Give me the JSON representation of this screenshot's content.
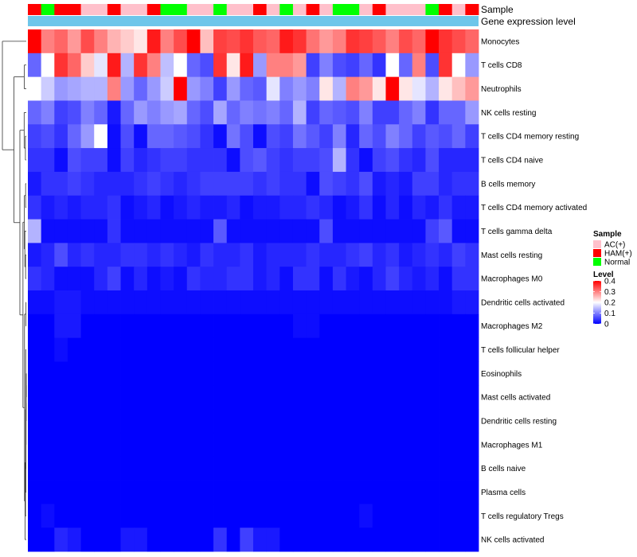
{
  "chart_data": {
    "type": "heatmap",
    "title": "",
    "annotations": [
      {
        "name": "Sample",
        "type": "categorical"
      },
      {
        "name": "Gene expression level",
        "type": "constant",
        "color": "#6ec6ea"
      }
    ],
    "sample_groups": [
      "HAM(+)",
      "Normal",
      "HAM(+)",
      "HAM(+)",
      "AC(+)",
      "AC(+)",
      "HAM(+)",
      "AC(+)",
      "AC(+)",
      "HAM(+)",
      "Normal",
      "Normal",
      "AC(+)",
      "AC(+)",
      "Normal",
      "AC(+)",
      "AC(+)",
      "HAM(+)",
      "AC(+)",
      "Normal",
      "AC(+)",
      "HAM(+)",
      "AC(+)",
      "Normal",
      "Normal",
      "AC(+)",
      "HAM(+)",
      "AC(+)",
      "AC(+)",
      "AC(+)",
      "Normal",
      "HAM(+)",
      "AC(+)",
      "HAM(+)"
    ],
    "sample_colors": {
      "AC(+)": "#ffc0cb",
      "HAM(+)": "#ff0000",
      "Normal": "#00ff00"
    },
    "rows": [
      "Monocytes",
      "T cells CD8",
      "Neutrophils",
      "NK cells resting",
      "T cells CD4 memory resting",
      "T cells CD4 naive",
      "B cells memory",
      "T cells CD4 memory activated",
      "T cells gamma delta",
      "Mast cells resting",
      "Macrophages M0",
      "Dendritic cells activated",
      "Macrophages M2",
      "T cells follicular helper",
      "Eosinophils",
      "Mast cells activated",
      "Dendritic cells resting",
      "Macrophages M1",
      "B cells naive",
      "Plasma cells",
      "T cells regulatory  Tregs",
      "NK cells activated"
    ],
    "row_base": [
      0.33,
      0.2,
      0.15,
      0.11,
      0.09,
      0.07,
      0.05,
      0.035,
      0.02,
      0.045,
      0.03,
      0.015,
      0.01,
      0.002,
      0.0,
      0.0,
      0.0,
      0.0,
      0.0,
      0.0,
      0.003,
      0.012
    ],
    "values": [
      [
        0.4,
        0.3,
        0.32,
        0.28,
        0.34,
        0.3,
        0.26,
        0.24,
        0.22,
        0.38,
        0.3,
        0.34,
        0.4,
        0.25,
        0.35,
        0.34,
        0.36,
        0.33,
        0.32,
        0.38,
        0.36,
        0.31,
        0.28,
        0.3,
        0.36,
        0.35,
        0.33,
        0.3,
        0.34,
        0.32,
        0.4,
        0.36,
        0.34,
        0.32
      ],
      [
        0.08,
        0.2,
        0.36,
        0.32,
        0.24,
        0.18,
        0.38,
        0.14,
        0.36,
        0.3,
        0.15,
        0.2,
        0.08,
        0.06,
        0.36,
        0.22,
        0.38,
        0.12,
        0.3,
        0.3,
        0.28,
        0.05,
        0.1,
        0.06,
        0.05,
        0.08,
        0.04,
        0.2,
        0.08,
        0.3,
        0.06,
        0.36,
        0.2,
        0.12
      ],
      [
        0.2,
        0.16,
        0.12,
        0.13,
        0.14,
        0.14,
        0.3,
        0.12,
        0.08,
        0.12,
        0.16,
        0.4,
        0.12,
        0.1,
        0.05,
        0.12,
        0.08,
        0.07,
        0.18,
        0.1,
        0.12,
        0.1,
        0.22,
        0.14,
        0.3,
        0.28,
        0.22,
        0.4,
        0.22,
        0.18,
        0.14,
        0.22,
        0.25,
        0.28
      ],
      [
        0.08,
        0.1,
        0.05,
        0.06,
        0.1,
        0.08,
        0.02,
        0.08,
        0.12,
        0.1,
        0.12,
        0.13,
        0.08,
        0.06,
        0.13,
        0.08,
        0.1,
        0.09,
        0.1,
        0.08,
        0.14,
        0.05,
        0.08,
        0.07,
        0.06,
        0.1,
        0.05,
        0.05,
        0.08,
        0.1,
        0.04,
        0.08,
        0.08,
        0.12
      ],
      [
        0.05,
        0.06,
        0.04,
        0.08,
        0.12,
        0.2,
        0.01,
        0.06,
        0.01,
        0.08,
        0.08,
        0.07,
        0.06,
        0.04,
        0.01,
        0.09,
        0.06,
        0.01,
        0.06,
        0.05,
        0.09,
        0.07,
        0.05,
        0.1,
        0.03,
        0.08,
        0.06,
        0.1,
        0.08,
        0.05,
        0.07,
        0.06,
        0.08,
        0.05
      ],
      [
        0.04,
        0.04,
        0.01,
        0.06,
        0.05,
        0.05,
        0.01,
        0.05,
        0.03,
        0.04,
        0.05,
        0.05,
        0.04,
        0.04,
        0.04,
        0.01,
        0.06,
        0.07,
        0.05,
        0.04,
        0.05,
        0.05,
        0.06,
        0.14,
        0.04,
        0.01,
        0.05,
        0.06,
        0.04,
        0.03,
        0.06,
        0.03,
        0.03,
        0.03
      ],
      [
        0.02,
        0.04,
        0.04,
        0.05,
        0.04,
        0.03,
        0.03,
        0.03,
        0.04,
        0.05,
        0.04,
        0.03,
        0.04,
        0.05,
        0.05,
        0.05,
        0.05,
        0.04,
        0.05,
        0.04,
        0.04,
        0.01,
        0.06,
        0.05,
        0.04,
        0.06,
        0.02,
        0.03,
        0.02,
        0.05,
        0.05,
        0.03,
        0.04,
        0.04
      ],
      [
        0.04,
        0.02,
        0.03,
        0.02,
        0.03,
        0.03,
        0.04,
        0.01,
        0.02,
        0.03,
        0.01,
        0.02,
        0.03,
        0.02,
        0.02,
        0.03,
        0.01,
        0.02,
        0.02,
        0.03,
        0.03,
        0.04,
        0.03,
        0.01,
        0.02,
        0.04,
        0.01,
        0.03,
        0.01,
        0.03,
        0.02,
        0.04,
        0.02,
        0.02
      ],
      [
        0.14,
        0.01,
        0.01,
        0.01,
        0.01,
        0.01,
        0.04,
        0.01,
        0.01,
        0.01,
        0.01,
        0.01,
        0.01,
        0.01,
        0.07,
        0.01,
        0.01,
        0.01,
        0.01,
        0.01,
        0.01,
        0.01,
        0.06,
        0.01,
        0.01,
        0.01,
        0.01,
        0.01,
        0.01,
        0.01,
        0.05,
        0.07,
        0.01,
        0.01
      ],
      [
        0.02,
        0.03,
        0.06,
        0.03,
        0.04,
        0.03,
        0.03,
        0.04,
        0.04,
        0.03,
        0.04,
        0.03,
        0.02,
        0.04,
        0.03,
        0.03,
        0.04,
        0.02,
        0.03,
        0.03,
        0.03,
        0.04,
        0.03,
        0.03,
        0.04,
        0.05,
        0.03,
        0.04,
        0.02,
        0.03,
        0.04,
        0.03,
        0.05,
        0.04
      ],
      [
        0.04,
        0.03,
        0.01,
        0.01,
        0.01,
        0.03,
        0.05,
        0.01,
        0.03,
        0.01,
        0.02,
        0.01,
        0.04,
        0.03,
        0.03,
        0.04,
        0.04,
        0.02,
        0.03,
        0.01,
        0.04,
        0.04,
        0.01,
        0.04,
        0.02,
        0.01,
        0.03,
        0.05,
        0.03,
        0.02,
        0.03,
        0.01,
        0.04,
        0.04
      ],
      [
        0.01,
        0.01,
        0.02,
        0.02,
        0.01,
        0.01,
        0.01,
        0.01,
        0.01,
        0.01,
        0.01,
        0.01,
        0.01,
        0.01,
        0.01,
        0.01,
        0.01,
        0.01,
        0.01,
        0.01,
        0.01,
        0.01,
        0.01,
        0.01,
        0.01,
        0.01,
        0.01,
        0.01,
        0.01,
        0.01,
        0.01,
        0.01,
        0.02,
        0.02
      ],
      [
        0.0,
        0.0,
        0.02,
        0.02,
        0.0,
        0.0,
        0.0,
        0.0,
        0.0,
        0.0,
        0.0,
        0.0,
        0.0,
        0.0,
        0.0,
        0.0,
        0.0,
        0.0,
        0.0,
        0.0,
        0.01,
        0.01,
        0.0,
        0.0,
        0.0,
        0.0,
        0.0,
        0.0,
        0.0,
        0.0,
        0.0,
        0.0,
        0.0,
        0.0
      ],
      [
        0.0,
        0.0,
        0.01,
        0.0,
        0.0,
        0.0,
        0.0,
        0.0,
        0.0,
        0.0,
        0.0,
        0.0,
        0.0,
        0.0,
        0.0,
        0.0,
        0.0,
        0.0,
        0.0,
        0.0,
        0.0,
        0.0,
        0.0,
        0.0,
        0.0,
        0.0,
        0.0,
        0.0,
        0.0,
        0.0,
        0.0,
        0.0,
        0.0,
        0.0
      ],
      [
        0.0,
        0.0,
        0.0,
        0.0,
        0.0,
        0.0,
        0.0,
        0.0,
        0.0,
        0.0,
        0.0,
        0.0,
        0.0,
        0.0,
        0.0,
        0.0,
        0.0,
        0.0,
        0.0,
        0.0,
        0.0,
        0.0,
        0.0,
        0.0,
        0.0,
        0.0,
        0.0,
        0.0,
        0.0,
        0.0,
        0.0,
        0.0,
        0.0,
        0.0
      ],
      [
        0.0,
        0.0,
        0.0,
        0.0,
        0.0,
        0.0,
        0.0,
        0.0,
        0.0,
        0.0,
        0.0,
        0.0,
        0.0,
        0.0,
        0.0,
        0.0,
        0.0,
        0.0,
        0.0,
        0.0,
        0.0,
        0.0,
        0.0,
        0.0,
        0.0,
        0.0,
        0.0,
        0.0,
        0.0,
        0.0,
        0.0,
        0.0,
        0.0,
        0.0
      ],
      [
        0.0,
        0.0,
        0.0,
        0.0,
        0.0,
        0.0,
        0.0,
        0.0,
        0.0,
        0.0,
        0.0,
        0.0,
        0.0,
        0.0,
        0.0,
        0.0,
        0.0,
        0.0,
        0.0,
        0.0,
        0.0,
        0.0,
        0.0,
        0.0,
        0.0,
        0.0,
        0.0,
        0.0,
        0.0,
        0.0,
        0.0,
        0.0,
        0.0,
        0.0
      ],
      [
        0.0,
        0.0,
        0.0,
        0.0,
        0.0,
        0.0,
        0.0,
        0.0,
        0.0,
        0.0,
        0.0,
        0.0,
        0.0,
        0.0,
        0.0,
        0.0,
        0.0,
        0.0,
        0.0,
        0.0,
        0.0,
        0.0,
        0.0,
        0.0,
        0.0,
        0.0,
        0.0,
        0.0,
        0.0,
        0.0,
        0.0,
        0.0,
        0.0,
        0.0
      ],
      [
        0.0,
        0.0,
        0.0,
        0.0,
        0.0,
        0.0,
        0.0,
        0.0,
        0.0,
        0.0,
        0.0,
        0.0,
        0.0,
        0.0,
        0.0,
        0.0,
        0.0,
        0.0,
        0.0,
        0.0,
        0.0,
        0.0,
        0.0,
        0.0,
        0.0,
        0.0,
        0.0,
        0.0,
        0.0,
        0.0,
        0.0,
        0.0,
        0.0,
        0.0
      ],
      [
        0.0,
        0.0,
        0.0,
        0.0,
        0.0,
        0.0,
        0.0,
        0.0,
        0.0,
        0.0,
        0.0,
        0.0,
        0.0,
        0.0,
        0.0,
        0.0,
        0.0,
        0.0,
        0.0,
        0.0,
        0.0,
        0.0,
        0.0,
        0.0,
        0.0,
        0.0,
        0.0,
        0.0,
        0.0,
        0.0,
        0.0,
        0.0,
        0.0,
        0.0
      ],
      [
        0.0,
        0.01,
        0.0,
        0.0,
        0.0,
        0.0,
        0.0,
        0.0,
        0.0,
        0.0,
        0.0,
        0.0,
        0.0,
        0.0,
        0.0,
        0.0,
        0.0,
        0.0,
        0.0,
        0.0,
        0.0,
        0.0,
        0.0,
        0.0,
        0.0,
        0.01,
        0.0,
        0.0,
        0.0,
        0.0,
        0.0,
        0.0,
        0.0,
        0.0
      ],
      [
        0.0,
        0.0,
        0.03,
        0.02,
        0.0,
        0.0,
        0.0,
        0.02,
        0.02,
        0.0,
        0.0,
        0.0,
        0.0,
        0.0,
        0.04,
        0.0,
        0.05,
        0.02,
        0.02,
        0.0,
        0.0,
        0.0,
        0.0,
        0.0,
        0.0,
        0.0,
        0.0,
        0.0,
        0.0,
        0.0,
        0.0,
        0.0,
        0.0,
        0.0
      ]
    ],
    "color_scale": {
      "min": 0,
      "max": 0.4,
      "low": "#0000ff",
      "mid": "#ffffff",
      "high": "#ff0000",
      "midpoint": 0.2
    },
    "legend": {
      "sample_title": "Sample",
      "sample_entries": [
        {
          "label": "AC(+)",
          "color": "#ffc0cb"
        },
        {
          "label": "HAM(+)",
          "color": "#ff0000"
        },
        {
          "label": "Normal",
          "color": "#00ff00"
        }
      ],
      "level_title": "Level",
      "level_ticks": [
        {
          "label": "0.4",
          "value": 0.4
        },
        {
          "label": "0.3",
          "value": 0.3
        },
        {
          "label": "0.2",
          "value": 0.2
        },
        {
          "label": "0.1",
          "value": 0.1
        },
        {
          "label": "0",
          "value": 0.0
        }
      ],
      "placement": "right"
    },
    "dendrogram": "rows"
  }
}
